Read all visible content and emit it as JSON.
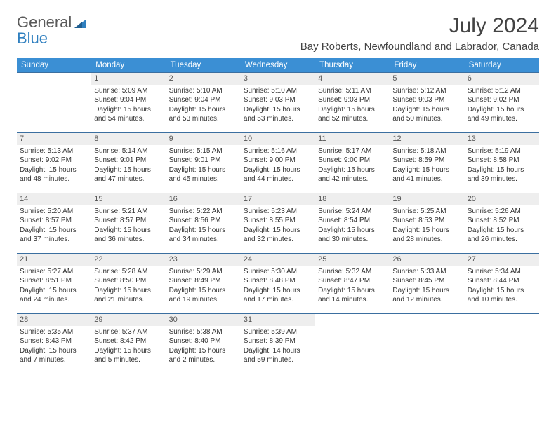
{
  "logo": {
    "line1": "General",
    "line2": "Blue"
  },
  "title": "July 2024",
  "location": "Bay Roberts, Newfoundland and Labrador, Canada",
  "colors": {
    "header_bg": "#3b8fd4",
    "row_border": "#3b6fa0",
    "daynum_bg": "#eeeeee",
    "logo_blue": "#2f7fbf",
    "text": "#333333"
  },
  "weekdays": [
    "Sunday",
    "Monday",
    "Tuesday",
    "Wednesday",
    "Thursday",
    "Friday",
    "Saturday"
  ],
  "weeks": [
    [
      {
        "n": "",
        "sr": "",
        "ss": "",
        "dl": ""
      },
      {
        "n": "1",
        "sr": "Sunrise: 5:09 AM",
        "ss": "Sunset: 9:04 PM",
        "dl": "Daylight: 15 hours and 54 minutes."
      },
      {
        "n": "2",
        "sr": "Sunrise: 5:10 AM",
        "ss": "Sunset: 9:04 PM",
        "dl": "Daylight: 15 hours and 53 minutes."
      },
      {
        "n": "3",
        "sr": "Sunrise: 5:10 AM",
        "ss": "Sunset: 9:03 PM",
        "dl": "Daylight: 15 hours and 53 minutes."
      },
      {
        "n": "4",
        "sr": "Sunrise: 5:11 AM",
        "ss": "Sunset: 9:03 PM",
        "dl": "Daylight: 15 hours and 52 minutes."
      },
      {
        "n": "5",
        "sr": "Sunrise: 5:12 AM",
        "ss": "Sunset: 9:03 PM",
        "dl": "Daylight: 15 hours and 50 minutes."
      },
      {
        "n": "6",
        "sr": "Sunrise: 5:12 AM",
        "ss": "Sunset: 9:02 PM",
        "dl": "Daylight: 15 hours and 49 minutes."
      }
    ],
    [
      {
        "n": "7",
        "sr": "Sunrise: 5:13 AM",
        "ss": "Sunset: 9:02 PM",
        "dl": "Daylight: 15 hours and 48 minutes."
      },
      {
        "n": "8",
        "sr": "Sunrise: 5:14 AM",
        "ss": "Sunset: 9:01 PM",
        "dl": "Daylight: 15 hours and 47 minutes."
      },
      {
        "n": "9",
        "sr": "Sunrise: 5:15 AM",
        "ss": "Sunset: 9:01 PM",
        "dl": "Daylight: 15 hours and 45 minutes."
      },
      {
        "n": "10",
        "sr": "Sunrise: 5:16 AM",
        "ss": "Sunset: 9:00 PM",
        "dl": "Daylight: 15 hours and 44 minutes."
      },
      {
        "n": "11",
        "sr": "Sunrise: 5:17 AM",
        "ss": "Sunset: 9:00 PM",
        "dl": "Daylight: 15 hours and 42 minutes."
      },
      {
        "n": "12",
        "sr": "Sunrise: 5:18 AM",
        "ss": "Sunset: 8:59 PM",
        "dl": "Daylight: 15 hours and 41 minutes."
      },
      {
        "n": "13",
        "sr": "Sunrise: 5:19 AM",
        "ss": "Sunset: 8:58 PM",
        "dl": "Daylight: 15 hours and 39 minutes."
      }
    ],
    [
      {
        "n": "14",
        "sr": "Sunrise: 5:20 AM",
        "ss": "Sunset: 8:57 PM",
        "dl": "Daylight: 15 hours and 37 minutes."
      },
      {
        "n": "15",
        "sr": "Sunrise: 5:21 AM",
        "ss": "Sunset: 8:57 PM",
        "dl": "Daylight: 15 hours and 36 minutes."
      },
      {
        "n": "16",
        "sr": "Sunrise: 5:22 AM",
        "ss": "Sunset: 8:56 PM",
        "dl": "Daylight: 15 hours and 34 minutes."
      },
      {
        "n": "17",
        "sr": "Sunrise: 5:23 AM",
        "ss": "Sunset: 8:55 PM",
        "dl": "Daylight: 15 hours and 32 minutes."
      },
      {
        "n": "18",
        "sr": "Sunrise: 5:24 AM",
        "ss": "Sunset: 8:54 PM",
        "dl": "Daylight: 15 hours and 30 minutes."
      },
      {
        "n": "19",
        "sr": "Sunrise: 5:25 AM",
        "ss": "Sunset: 8:53 PM",
        "dl": "Daylight: 15 hours and 28 minutes."
      },
      {
        "n": "20",
        "sr": "Sunrise: 5:26 AM",
        "ss": "Sunset: 8:52 PM",
        "dl": "Daylight: 15 hours and 26 minutes."
      }
    ],
    [
      {
        "n": "21",
        "sr": "Sunrise: 5:27 AM",
        "ss": "Sunset: 8:51 PM",
        "dl": "Daylight: 15 hours and 24 minutes."
      },
      {
        "n": "22",
        "sr": "Sunrise: 5:28 AM",
        "ss": "Sunset: 8:50 PM",
        "dl": "Daylight: 15 hours and 21 minutes."
      },
      {
        "n": "23",
        "sr": "Sunrise: 5:29 AM",
        "ss": "Sunset: 8:49 PM",
        "dl": "Daylight: 15 hours and 19 minutes."
      },
      {
        "n": "24",
        "sr": "Sunrise: 5:30 AM",
        "ss": "Sunset: 8:48 PM",
        "dl": "Daylight: 15 hours and 17 minutes."
      },
      {
        "n": "25",
        "sr": "Sunrise: 5:32 AM",
        "ss": "Sunset: 8:47 PM",
        "dl": "Daylight: 15 hours and 14 minutes."
      },
      {
        "n": "26",
        "sr": "Sunrise: 5:33 AM",
        "ss": "Sunset: 8:45 PM",
        "dl": "Daylight: 15 hours and 12 minutes."
      },
      {
        "n": "27",
        "sr": "Sunrise: 5:34 AM",
        "ss": "Sunset: 8:44 PM",
        "dl": "Daylight: 15 hours and 10 minutes."
      }
    ],
    [
      {
        "n": "28",
        "sr": "Sunrise: 5:35 AM",
        "ss": "Sunset: 8:43 PM",
        "dl": "Daylight: 15 hours and 7 minutes."
      },
      {
        "n": "29",
        "sr": "Sunrise: 5:37 AM",
        "ss": "Sunset: 8:42 PM",
        "dl": "Daylight: 15 hours and 5 minutes."
      },
      {
        "n": "30",
        "sr": "Sunrise: 5:38 AM",
        "ss": "Sunset: 8:40 PM",
        "dl": "Daylight: 15 hours and 2 minutes."
      },
      {
        "n": "31",
        "sr": "Sunrise: 5:39 AM",
        "ss": "Sunset: 8:39 PM",
        "dl": "Daylight: 14 hours and 59 minutes."
      },
      {
        "n": "",
        "sr": "",
        "ss": "",
        "dl": ""
      },
      {
        "n": "",
        "sr": "",
        "ss": "",
        "dl": ""
      },
      {
        "n": "",
        "sr": "",
        "ss": "",
        "dl": ""
      }
    ]
  ]
}
